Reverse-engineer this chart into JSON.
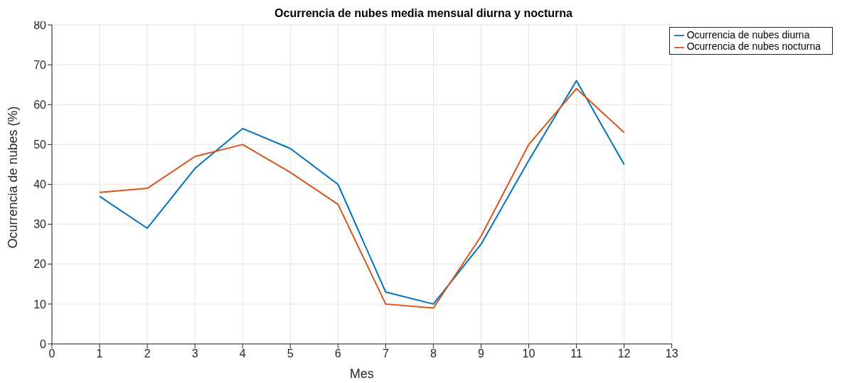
{
  "chart_data": {
    "type": "line",
    "title": "Ocurrencia de nubes media mensual diurna y nocturna",
    "xlabel": "Mes",
    "ylabel": "Ocurrencia de nubes (%)",
    "x": [
      1,
      2,
      3,
      4,
      5,
      6,
      7,
      8,
      9,
      10,
      11,
      12
    ],
    "series": [
      {
        "name": "Ocurrencia de nubes diurna",
        "color": "#0072bd",
        "values": [
          37,
          29,
          44,
          54,
          49,
          40,
          13,
          10,
          25,
          46,
          66,
          45
        ]
      },
      {
        "name": "Ocurrencia de nubes nocturna",
        "color": "#d95319",
        "values": [
          38,
          39,
          47,
          50,
          43,
          35,
          10,
          9,
          27,
          50,
          64,
          53
        ]
      }
    ],
    "xlim": [
      0,
      13
    ],
    "xticks": [
      0,
      1,
      2,
      3,
      4,
      5,
      6,
      7,
      8,
      9,
      10,
      11,
      12,
      13
    ],
    "ylim": [
      0,
      80
    ],
    "yticks": [
      0,
      10,
      20,
      30,
      40,
      50,
      60,
      70,
      80
    ],
    "grid": true,
    "legend": "top right",
    "marker": "none",
    "line_style": "solid"
  }
}
